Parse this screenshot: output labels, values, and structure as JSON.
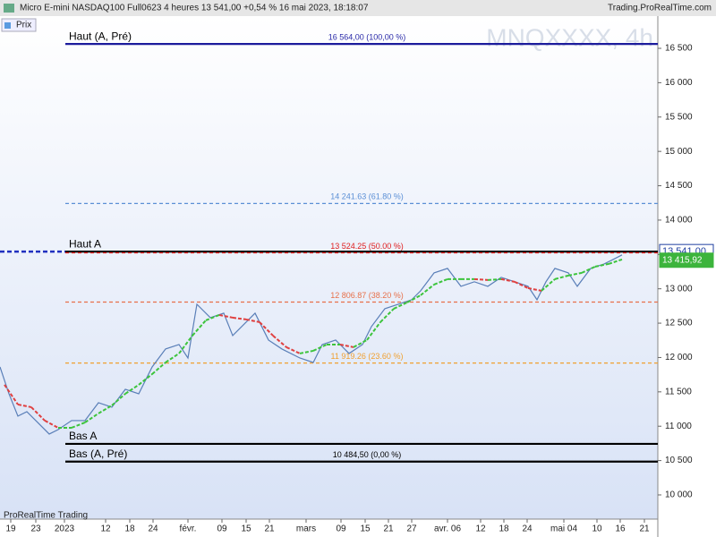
{
  "chart_data": {
    "type": "line",
    "title": "Micro E-mini NASDAQ100 Full0623 4 heures 13 541,00 +0,54 % 16 mai 2023, 18:18:07",
    "source": "Trading.ProRealTime.com",
    "watermark": "MNQXXXX, 4h",
    "legend_button": "Prix",
    "footer": "ProRealTime Trading",
    "xlim": [
      0,
      147
    ],
    "ylim": [
      9648,
      16969
    ],
    "xticks": [
      {
        "value": 2.4,
        "label": "19"
      },
      {
        "value": 8,
        "label": "23"
      },
      {
        "value": 14.4,
        "label": "2023"
      },
      {
        "value": 23.6,
        "label": "12"
      },
      {
        "value": 29,
        "label": "18"
      },
      {
        "value": 34.2,
        "label": "24"
      },
      {
        "value": 42,
        "label": "févr."
      },
      {
        "value": 49.6,
        "label": "09"
      },
      {
        "value": 55,
        "label": "15"
      },
      {
        "value": 60.2,
        "label": "21"
      },
      {
        "value": 68.4,
        "label": "mars"
      },
      {
        "value": 76.2,
        "label": "09"
      },
      {
        "value": 81.6,
        "label": "15"
      },
      {
        "value": 86.8,
        "label": "21"
      },
      {
        "value": 92,
        "label": "27"
      },
      {
        "value": 100,
        "label": "avr. 06"
      },
      {
        "value": 107.4,
        "label": "12"
      },
      {
        "value": 112.6,
        "label": "18"
      },
      {
        "value": 117.8,
        "label": "24"
      },
      {
        "value": 126,
        "label": "mai 04"
      },
      {
        "value": 133.4,
        "label": "10"
      },
      {
        "value": 138.6,
        "label": "16"
      },
      {
        "value": 144,
        "label": "21"
      }
    ],
    "yticks": [
      {
        "value": 10000,
        "label": "10 000"
      },
      {
        "value": 10500,
        "label": "10 500"
      },
      {
        "value": 11000,
        "label": "11 000"
      },
      {
        "value": 11500,
        "label": "11 500"
      },
      {
        "value": 12000,
        "label": "12 000"
      },
      {
        "value": 12500,
        "label": "12 500"
      },
      {
        "value": 13000,
        "label": "13 000"
      },
      {
        "value": 13500,
        "label": "13 500"
      },
      {
        "value": 14000,
        "label": "14 000"
      },
      {
        "value": 14500,
        "label": "14 500"
      },
      {
        "value": 15000,
        "label": "15 000"
      },
      {
        "value": 15500,
        "label": "15 500"
      },
      {
        "value": 16000,
        "label": "16 000"
      },
      {
        "value": 16500,
        "label": "16 500"
      }
    ],
    "series": [
      {
        "color": "#5a7fb8",
        "x": [
          0,
          2,
          4,
          6,
          8,
          11,
          13,
          16,
          19,
          22,
          25,
          28,
          31,
          34,
          37,
          40,
          42,
          44,
          47,
          50,
          52,
          55,
          57,
          60,
          63,
          67,
          70,
          72,
          75,
          78,
          81,
          83,
          86,
          89,
          92,
          94,
          97,
          100,
          103,
          106,
          109,
          112,
          115,
          118,
          120,
          122,
          124,
          127,
          129,
          132,
          135,
          137,
          139
        ],
        "values": [
          11863,
          11472,
          11147,
          11212,
          11082,
          10886,
          10951,
          11082,
          11082,
          11342,
          11277,
          11537,
          11472,
          11863,
          12124,
          12189,
          11993,
          12775,
          12580,
          12645,
          12319,
          12515,
          12645,
          12254,
          12124,
          11993,
          11928,
          12189,
          12254,
          12059,
          12189,
          12450,
          12710,
          12775,
          12841,
          12971,
          13232,
          13297,
          13036,
          13102,
          13036,
          13167,
          13102,
          13036,
          12841,
          13102,
          13297,
          13232,
          13036,
          13297,
          13362,
          13427,
          13493
        ]
      },
      {
        "color": "#3cc43c",
        "falling_color": "#e04040",
        "dashed": true,
        "x": [
          1,
          4,
          7,
          10,
          13,
          16,
          19,
          22,
          25,
          28,
          31,
          34,
          37,
          40,
          43,
          46,
          49,
          52,
          55,
          58,
          61,
          64,
          67,
          70,
          73,
          76,
          79,
          82,
          85,
          88,
          91,
          94,
          97,
          100,
          103,
          106,
          109,
          112,
          115,
          118,
          121,
          124,
          127,
          130,
          133,
          136,
          139
        ],
        "values": [
          11603,
          11316,
          11277,
          11082,
          10977,
          10977,
          11055,
          11186,
          11303,
          11472,
          11603,
          11759,
          11928,
          12059,
          12319,
          12541,
          12619,
          12580,
          12554,
          12515,
          12319,
          12150,
          12059,
          12098,
          12189,
          12189,
          12150,
          12254,
          12515,
          12710,
          12802,
          12906,
          13062,
          13141,
          13141,
          13141,
          13128,
          13141,
          13102,
          13010,
          12971,
          13141,
          13193,
          13232,
          13323,
          13362,
          13427
        ]
      }
    ],
    "levels": [
      {
        "value": 16564,
        "name": "Haut (A, Pré)",
        "label": "16 564,00 (100,00 %)",
        "color": "#1c1c9c",
        "dashed": false
      },
      {
        "value": 14241.63,
        "label": "14 241.63 (61.80 %)",
        "color": "#5b8fd6",
        "dashed": true
      },
      {
        "value": 13541,
        "name": "Haut A",
        "color": "#000000",
        "dashed": false
      },
      {
        "value": 13524.25,
        "label": "13 524.25 (50.00 %)",
        "color": "#e02020",
        "dashed": true
      },
      {
        "value": 12806.87,
        "label": "12 806.87 (38.20 %)",
        "color": "#e8704a",
        "dashed": true
      },
      {
        "value": 11919.26,
        "label": "11 919.26 (23.60 %)",
        "color": "#f0a030",
        "dashed": true
      },
      {
        "value": 10743,
        "name": "Bas A",
        "color": "#000000",
        "dashed": false
      },
      {
        "value": 10484.5,
        "name": "Bas (A, Pré)",
        "label": "10 484,50 (0,00 %)",
        "color": "#000000",
        "dashed": false
      }
    ],
    "price_labels": [
      {
        "value": 13541,
        "label": "13 541,00",
        "color": "#2040a0",
        "fill": "#ffffff"
      },
      {
        "value": 13415.92,
        "label": "13 415,92",
        "color": "#ffffff",
        "fill": "#3cb43c"
      }
    ]
  }
}
